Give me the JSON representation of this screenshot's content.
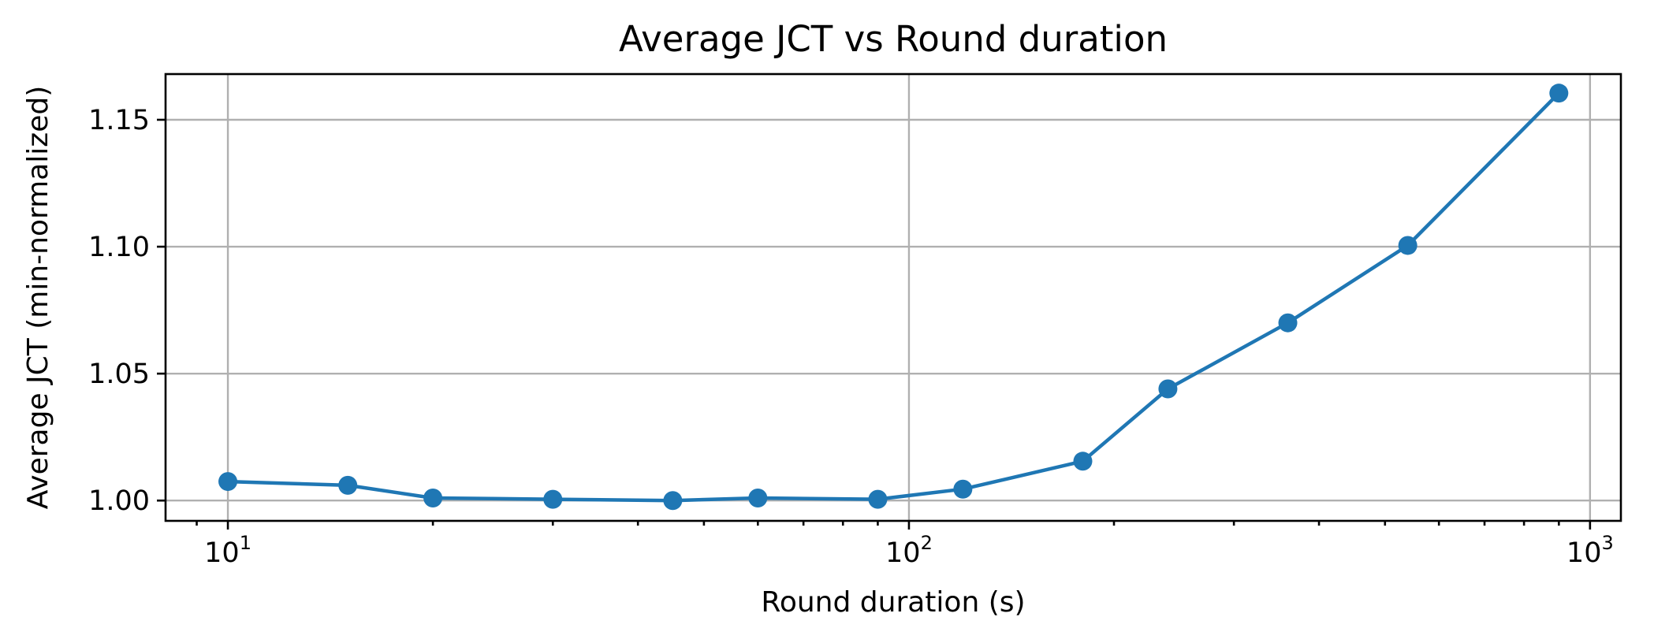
{
  "chart_data": {
    "type": "line",
    "title": "Average JCT vs Round duration",
    "xlabel": "Round duration (s)",
    "ylabel": "Average JCT (min-normalized)",
    "xscale": "log",
    "xlim": [
      8.1,
      1110
    ],
    "ylim": [
      0.992,
      1.168
    ],
    "grid": true,
    "x_ticks": [
      {
        "base": "10",
        "exp": "1",
        "value": 10
      },
      {
        "base": "10",
        "exp": "2",
        "value": 100
      },
      {
        "base": "10",
        "exp": "3",
        "value": 1000
      }
    ],
    "y_ticks": [
      {
        "label": "1.00",
        "value": 1.0
      },
      {
        "label": "1.05",
        "value": 1.05
      },
      {
        "label": "1.10",
        "value": 1.1
      },
      {
        "label": "1.15",
        "value": 1.15
      }
    ],
    "series": [
      {
        "name": "Average JCT",
        "color": "#1f77b4",
        "x": [
          10,
          15,
          20,
          30,
          45,
          60,
          90,
          120,
          180,
          240,
          360,
          540,
          900
        ],
        "y": [
          1.0075,
          1.006,
          1.001,
          1.0005,
          1.0,
          1.001,
          1.0005,
          1.0045,
          1.0155,
          1.044,
          1.07,
          1.1005,
          1.1605
        ]
      }
    ]
  }
}
